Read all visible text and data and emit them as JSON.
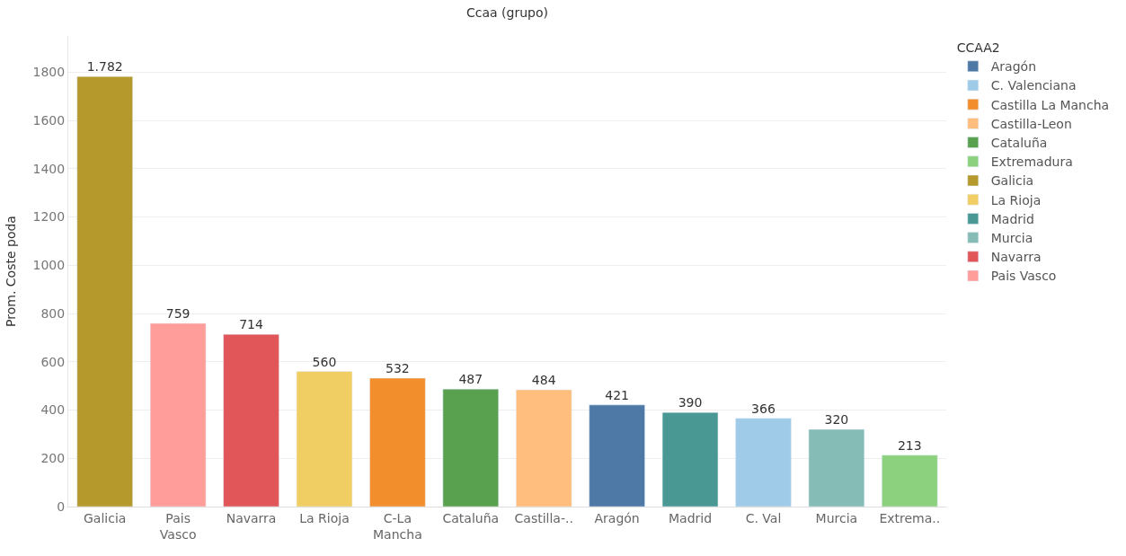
{
  "chart_data": {
    "type": "bar",
    "title": "Ccaa (grupo)",
    "ylabel": "Prom. Coste poda",
    "legend_title": "CCAA2",
    "categories": [
      "Galicia",
      "Pais Vasco",
      "Navarra",
      "La Rioja",
      "C-La Mancha",
      "Cataluña",
      "Castilla-..",
      "Aragón",
      "Madrid",
      "C. Val",
      "Murcia",
      "Extrema.."
    ],
    "series": [
      {
        "name": "Aragón",
        "color": "#4e79a7",
        "values": [
          null,
          null,
          null,
          null,
          null,
          null,
          null,
          421,
          null,
          null,
          null,
          null
        ],
        "value_labels": [
          null,
          null,
          null,
          null,
          null,
          null,
          null,
          "421",
          null,
          null,
          null,
          null
        ]
      },
      {
        "name": "C. Valenciana",
        "color": "#a0cbe8",
        "values": [
          null,
          null,
          null,
          null,
          null,
          null,
          null,
          null,
          null,
          366,
          null,
          null
        ],
        "value_labels": [
          null,
          null,
          null,
          null,
          null,
          null,
          null,
          null,
          null,
          "366",
          null,
          null
        ]
      },
      {
        "name": "Castilla La Mancha",
        "color": "#f28e2b",
        "values": [
          null,
          null,
          null,
          null,
          532,
          null,
          null,
          null,
          null,
          null,
          null,
          null
        ],
        "value_labels": [
          null,
          null,
          null,
          null,
          "532",
          null,
          null,
          null,
          null,
          null,
          null,
          null
        ]
      },
      {
        "name": "Castilla-Leon",
        "color": "#ffbe7d",
        "values": [
          null,
          null,
          null,
          null,
          null,
          null,
          484,
          null,
          null,
          null,
          null,
          null
        ],
        "value_labels": [
          null,
          null,
          null,
          null,
          null,
          null,
          "484",
          null,
          null,
          null,
          null,
          null
        ]
      },
      {
        "name": "Cataluña",
        "color": "#59a14f",
        "values": [
          null,
          null,
          null,
          null,
          null,
          487,
          null,
          null,
          null,
          null,
          null,
          null
        ],
        "value_labels": [
          null,
          null,
          null,
          null,
          null,
          "487",
          null,
          null,
          null,
          null,
          null,
          null
        ]
      },
      {
        "name": "Extremadura",
        "color": "#8cd17d",
        "values": [
          null,
          null,
          null,
          null,
          null,
          null,
          null,
          null,
          null,
          null,
          null,
          213
        ],
        "value_labels": [
          null,
          null,
          null,
          null,
          null,
          null,
          null,
          null,
          null,
          null,
          null,
          "213"
        ]
      },
      {
        "name": "Galicia",
        "color": "#b6992d",
        "values": [
          1782,
          null,
          null,
          null,
          null,
          null,
          null,
          null,
          null,
          null,
          null,
          null
        ],
        "value_labels": [
          "1.782",
          null,
          null,
          null,
          null,
          null,
          null,
          null,
          null,
          null,
          null,
          null
        ]
      },
      {
        "name": "La Rioja",
        "color": "#f1ce63",
        "values": [
          null,
          null,
          null,
          560,
          null,
          null,
          null,
          null,
          null,
          null,
          null,
          null
        ],
        "value_labels": [
          null,
          null,
          null,
          "560",
          null,
          null,
          null,
          null,
          null,
          null,
          null,
          null
        ]
      },
      {
        "name": "Madrid",
        "color": "#499894",
        "values": [
          null,
          null,
          null,
          null,
          null,
          null,
          null,
          null,
          390,
          null,
          null,
          null
        ],
        "value_labels": [
          null,
          null,
          null,
          null,
          null,
          null,
          null,
          null,
          "390",
          null,
          null,
          null
        ]
      },
      {
        "name": "Murcia",
        "color": "#86bcb6",
        "values": [
          null,
          null,
          null,
          null,
          null,
          null,
          null,
          null,
          null,
          null,
          320,
          null
        ],
        "value_labels": [
          null,
          null,
          null,
          null,
          null,
          null,
          null,
          null,
          null,
          null,
          "320",
          null
        ]
      },
      {
        "name": "Navarra",
        "color": "#e15759",
        "values": [
          null,
          null,
          714,
          null,
          null,
          null,
          null,
          null,
          null,
          null,
          null,
          null
        ],
        "value_labels": [
          null,
          null,
          "714",
          null,
          null,
          null,
          null,
          null,
          null,
          null,
          null,
          null
        ]
      },
      {
        "name": "Pais Vasco",
        "color": "#ff9d9a",
        "values": [
          null,
          759,
          null,
          null,
          null,
          null,
          null,
          null,
          null,
          null,
          null,
          null
        ],
        "value_labels": [
          null,
          "759",
          null,
          null,
          null,
          null,
          null,
          null,
          null,
          null,
          null,
          null
        ]
      }
    ],
    "ylim": [
      0,
      1950
    ],
    "yticks": [
      0,
      200,
      400,
      600,
      800,
      1000,
      1200,
      1400,
      1600,
      1800
    ],
    "grid": "y",
    "legend": "top right"
  }
}
